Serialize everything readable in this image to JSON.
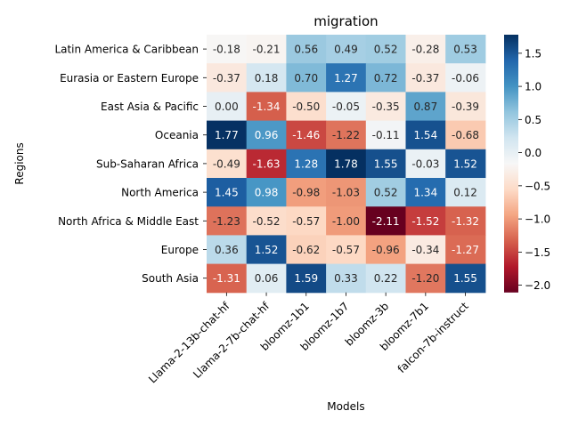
{
  "chart_data": {
    "type": "heatmap",
    "title": "migration",
    "xlabel": "Models",
    "ylabel": "Regions",
    "x_categories": [
      "Llama-2-13b-chat-hf",
      "Llama-2-7b-chat-hf",
      "bloomz-1b1",
      "bloomz-1b7",
      "bloomz-3b",
      "bloomz-7b1",
      "falcon-7b-instruct"
    ],
    "y_categories": [
      "Latin America & Caribbean",
      "Eurasia or Eastern Europe",
      "East Asia & Pacific",
      "Oceania",
      "Sub-Saharan Africa",
      "North America",
      "North Africa & Middle East",
      "Europe",
      "South Asia"
    ],
    "values": [
      [
        -0.18,
        -0.21,
        0.56,
        0.49,
        0.52,
        -0.28,
        0.53
      ],
      [
        -0.37,
        0.18,
        0.7,
        1.27,
        0.72,
        -0.37,
        -0.06
      ],
      [
        0.0,
        -1.34,
        -0.5,
        -0.05,
        -0.35,
        0.87,
        -0.39
      ],
      [
        1.77,
        0.96,
        -1.46,
        -1.22,
        -0.11,
        1.54,
        -0.68
      ],
      [
        -0.49,
        -1.63,
        1.28,
        1.78,
        1.55,
        -0.03,
        1.52
      ],
      [
        1.45,
        0.98,
        -0.98,
        -1.03,
        0.52,
        1.34,
        0.12
      ],
      [
        -1.23,
        -0.52,
        -0.57,
        -1.0,
        -2.11,
        -1.52,
        -1.32
      ],
      [
        0.36,
        1.52,
        -0.62,
        -0.57,
        -0.96,
        -0.34,
        -1.27
      ],
      [
        -1.31,
        0.06,
        1.59,
        0.33,
        0.22,
        -1.2,
        1.55
      ]
    ],
    "colormap": "RdBu",
    "vmin": -2.11,
    "vmax": 1.78,
    "colorbar_ticks": [
      1.5,
      1.0,
      0.5,
      0.0,
      -0.5,
      -1.0,
      -1.5,
      -2.0
    ],
    "colorbar_tick_labels": [
      "1.5",
      "1.0",
      "0.5",
      "0.0",
      "−0.5",
      "−1.0",
      "−1.5",
      "−2.0"
    ]
  }
}
